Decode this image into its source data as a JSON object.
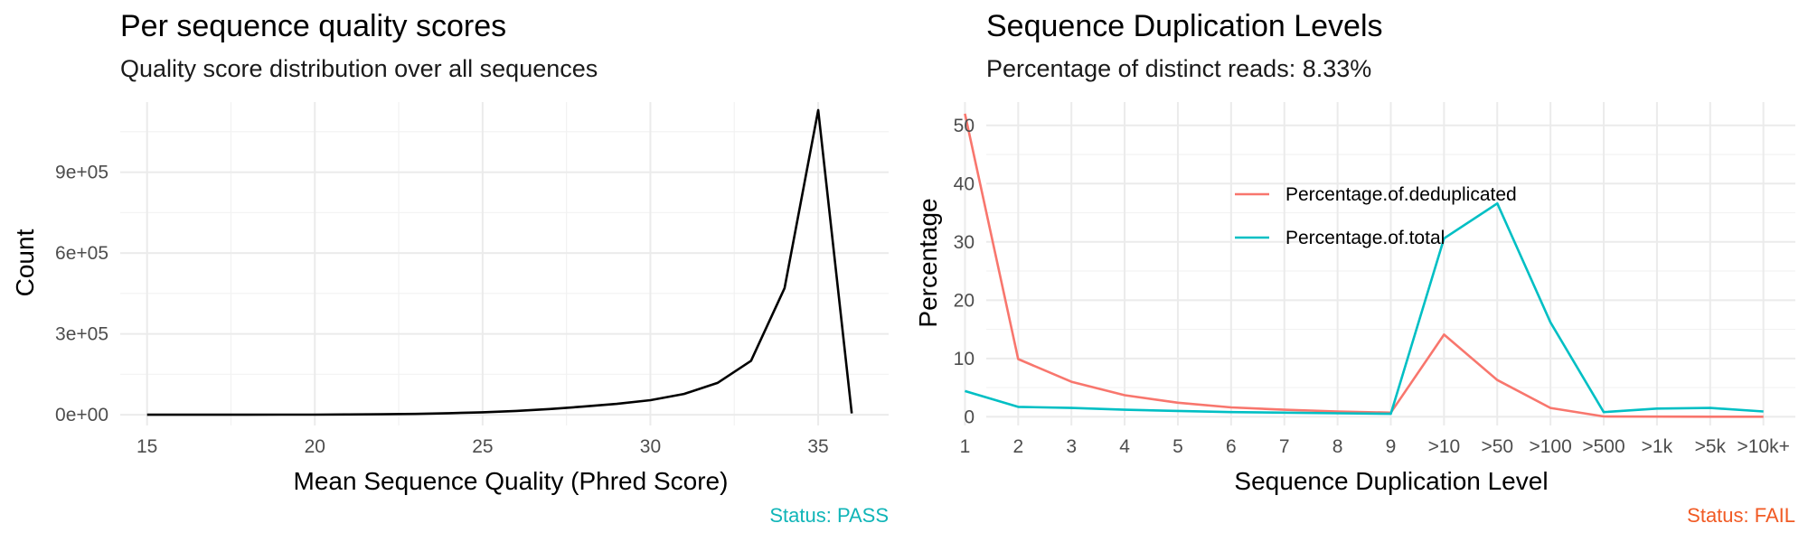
{
  "colors": {
    "pass": "#10b5b8",
    "fail": "#f15a24",
    "quality_line": "#000000",
    "dedup_line": "#f8766d",
    "total_line": "#00bfc4"
  },
  "panels": {
    "quality": {
      "title": "Per sequence quality scores",
      "subtitle": "Quality score distribution over all sequences",
      "status": "Status: PASS"
    },
    "duplication": {
      "title": "Sequence Duplication Levels",
      "subtitle": "Percentage of distinct reads: 8.33%",
      "status": "Status: FAIL"
    }
  },
  "chart_data": [
    {
      "type": "line",
      "title": "Per sequence quality scores",
      "subtitle": "Quality score distribution over all sequences",
      "xlabel": "Mean Sequence Quality (Phred Score)",
      "ylabel": "Count",
      "xlim": [
        14.2,
        37.1
      ],
      "ylim": [
        -40000,
        1160000
      ],
      "xticks": [
        15,
        20,
        25,
        30,
        35
      ],
      "xtick_labels": [
        "15",
        "20",
        "25",
        "30",
        "35"
      ],
      "yticks": [
        0,
        300000,
        600000,
        900000
      ],
      "ytick_labels": [
        "0e+00",
        "3e+05",
        "6e+05",
        "9e+05"
      ],
      "grid": true,
      "series": [
        {
          "x": [
            15,
            16,
            17,
            18,
            19,
            20,
            21,
            22,
            23,
            24,
            25,
            26,
            27,
            28,
            29,
            30,
            31,
            32,
            33,
            34,
            35,
            36
          ],
          "y": [
            0,
            0,
            0,
            0,
            100,
            300,
            800,
            1500,
            3000,
            5500,
            9000,
            14000,
            21000,
            30000,
            40000,
            54000,
            77000,
            118000,
            200000,
            470000,
            1130000,
            5000
          ]
        }
      ]
    },
    {
      "type": "line",
      "title": "Sequence Duplication Levels",
      "subtitle": "Percentage of distinct reads: 8.33%",
      "xlabel": "Sequence Duplication Level",
      "ylabel": "Percentage",
      "categories": [
        "1",
        "2",
        "3",
        "4",
        "5",
        "6",
        "7",
        "8",
        "9",
        ">10",
        ">50",
        ">100",
        ">500",
        ">1k",
        ">5k",
        ">10k+"
      ],
      "ylim": [
        -1.5,
        54
      ],
      "yticks": [
        0,
        10,
        20,
        30,
        40,
        50
      ],
      "ytick_labels": [
        "0",
        "10",
        "20",
        "30",
        "40",
        "50"
      ],
      "grid": true,
      "legend_position": "inside-top-center",
      "series": [
        {
          "name": "Percentage.of.deduplicated",
          "values": [
            52.0,
            9.9,
            6.0,
            3.7,
            2.4,
            1.6,
            1.2,
            0.9,
            0.7,
            14.1,
            6.3,
            1.5,
            0.05,
            0.02,
            0.01,
            0.01
          ]
        },
        {
          "name": "Percentage.of.total",
          "values": [
            4.4,
            1.7,
            1.5,
            1.2,
            1.0,
            0.8,
            0.7,
            0.6,
            0.5,
            30.6,
            36.6,
            16.2,
            0.8,
            1.4,
            1.5,
            0.9
          ]
        }
      ]
    }
  ]
}
